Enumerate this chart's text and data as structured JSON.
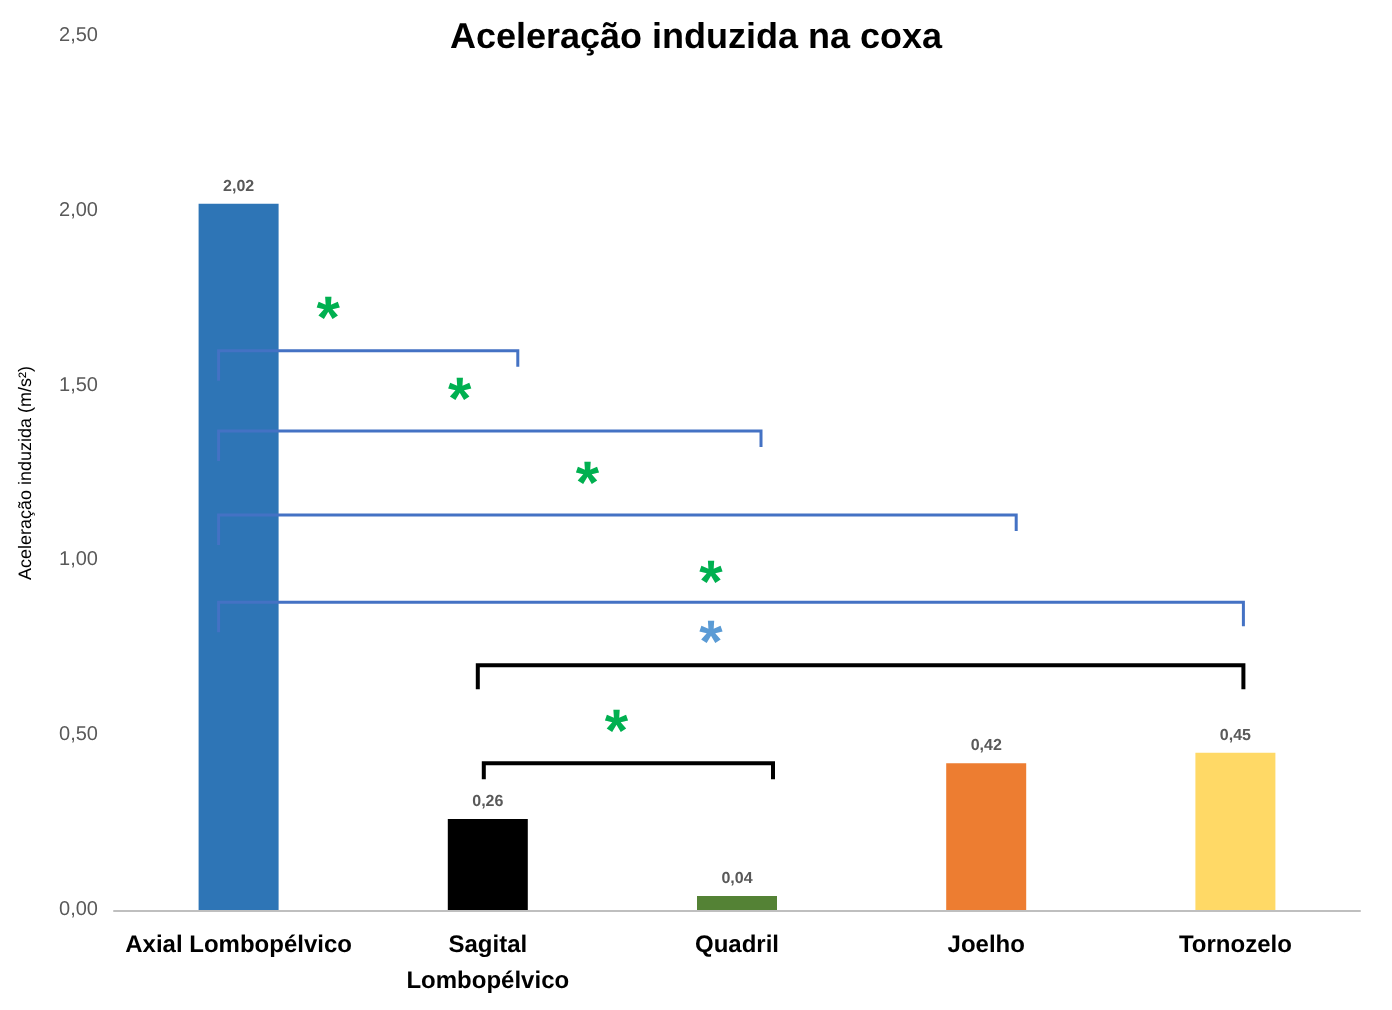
{
  "chart_data": {
    "type": "bar",
    "title": "Aceleração induzida na coxa",
    "ylabel": "Aceleração induzida (m/s²)",
    "categories": [
      "Axial Lombopélvico",
      "Sagital\nLombopélvico",
      "Quadril",
      "Joelho",
      "Tornozelo"
    ],
    "values": [
      2.02,
      0.26,
      0.04,
      0.42,
      0.45
    ],
    "colors": [
      "#2e75b6",
      "#000000",
      "#548235",
      "#ed7d31",
      "#ffd966"
    ],
    "value_labels": [
      "2,02",
      "0,26",
      "0,04",
      "0,42",
      "0,45"
    ],
    "ylim": [
      0,
      2.5
    ],
    "yticks": [
      {
        "value": 0,
        "label": "0,00"
      },
      {
        "value": 0.5,
        "label": "0,50"
      },
      {
        "value": 1,
        "label": "1,00"
      },
      {
        "value": 1.5,
        "label": "1,50"
      },
      {
        "value": 2,
        "label": "2,00"
      },
      {
        "value": 2.5,
        "label": "2,50"
      }
    ],
    "grid": false,
    "annotations": [
      "*",
      "*",
      "*",
      "*",
      "*",
      "*"
    ]
  }
}
